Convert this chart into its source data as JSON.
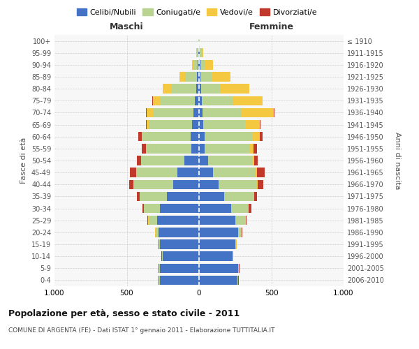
{
  "age_groups": [
    "0-4",
    "5-9",
    "10-14",
    "15-19",
    "20-24",
    "25-29",
    "30-34",
    "35-39",
    "40-44",
    "45-49",
    "50-54",
    "55-59",
    "60-64",
    "65-69",
    "70-74",
    "75-79",
    "80-84",
    "85-89",
    "90-94",
    "95-99",
    "100+"
  ],
  "birth_years": [
    "2006-2010",
    "2001-2005",
    "1996-2000",
    "1991-1995",
    "1986-1990",
    "1981-1985",
    "1976-1980",
    "1971-1975",
    "1966-1970",
    "1961-1965",
    "1956-1960",
    "1951-1955",
    "1946-1950",
    "1941-1945",
    "1936-1940",
    "1931-1935",
    "1926-1930",
    "1921-1925",
    "1916-1920",
    "1911-1915",
    "≤ 1910"
  ],
  "maschi": {
    "celibi": [
      270,
      270,
      250,
      270,
      280,
      290,
      270,
      220,
      180,
      150,
      100,
      55,
      60,
      50,
      40,
      30,
      20,
      15,
      8,
      5,
      2
    ],
    "coniugati": [
      5,
      5,
      5,
      5,
      20,
      60,
      110,
      190,
      270,
      280,
      300,
      310,
      330,
      300,
      280,
      240,
      170,
      80,
      25,
      10,
      3
    ],
    "vedovi": [
      2,
      2,
      2,
      2,
      2,
      2,
      2,
      2,
      2,
      3,
      2,
      3,
      5,
      10,
      40,
      50,
      60,
      40,
      15,
      5,
      2
    ],
    "divorziati": [
      2,
      2,
      2,
      2,
      2,
      5,
      10,
      20,
      30,
      45,
      30,
      30,
      25,
      5,
      5,
      2,
      0,
      0,
      0,
      0,
      0
    ]
  },
  "femmine": {
    "nubili": [
      265,
      270,
      230,
      250,
      270,
      250,
      220,
      175,
      135,
      95,
      65,
      40,
      40,
      30,
      25,
      20,
      15,
      10,
      10,
      5,
      2
    ],
    "coniugate": [
      5,
      5,
      5,
      8,
      25,
      70,
      120,
      200,
      265,
      295,
      300,
      315,
      330,
      290,
      270,
      210,
      135,
      75,
      35,
      12,
      3
    ],
    "vedove": [
      2,
      2,
      2,
      2,
      2,
      3,
      5,
      5,
      5,
      10,
      15,
      20,
      50,
      100,
      220,
      210,
      200,
      130,
      50,
      10,
      2
    ],
    "divorziate": [
      2,
      2,
      2,
      2,
      2,
      5,
      15,
      20,
      40,
      55,
      25,
      25,
      20,
      5,
      5,
      2,
      0,
      0,
      0,
      0,
      0
    ]
  },
  "colors": {
    "celibi_nubili": "#4472C4",
    "coniugati": "#B8D490",
    "vedovi": "#F5C842",
    "divorziati": "#C0392B"
  },
  "xlim": 1000,
  "title": "Popolazione per età, sesso e stato civile - 2011",
  "subtitle": "COMUNE DI ARGENTA (FE) - Dati ISTAT 1° gennaio 2011 - Elaborazione TUTTITALIA.IT",
  "ylabel_left": "Fasce di età",
  "ylabel_right": "Anni di nascita",
  "xlabel_left": "Maschi",
  "xlabel_right": "Femmine",
  "background_color": "#ffffff",
  "plot_bg": "#f7f7f7",
  "grid_color": "#cccccc"
}
